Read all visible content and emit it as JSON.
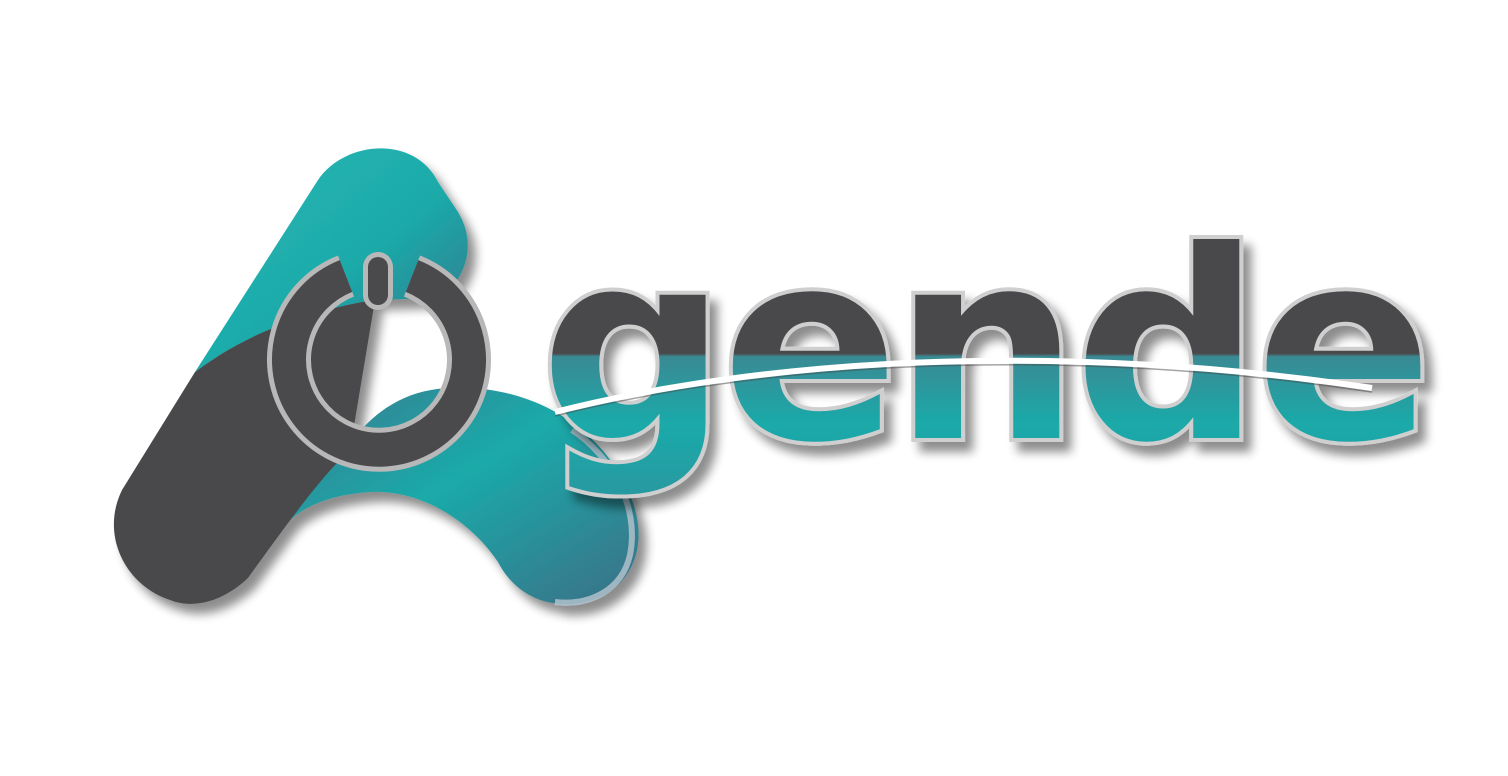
{
  "brand": {
    "wordmark": "gende",
    "full_name": "Agende"
  },
  "colors": {
    "background": "#ffffff",
    "charcoal": "#4a4a4c",
    "teal": "#1aaaa9",
    "teal_dark": "#3c6f86",
    "outline": "#b8b8b8",
    "shadow": "#9a9a9a"
  },
  "icons": {
    "mark": "letter-a-mark",
    "power": "power-icon"
  }
}
